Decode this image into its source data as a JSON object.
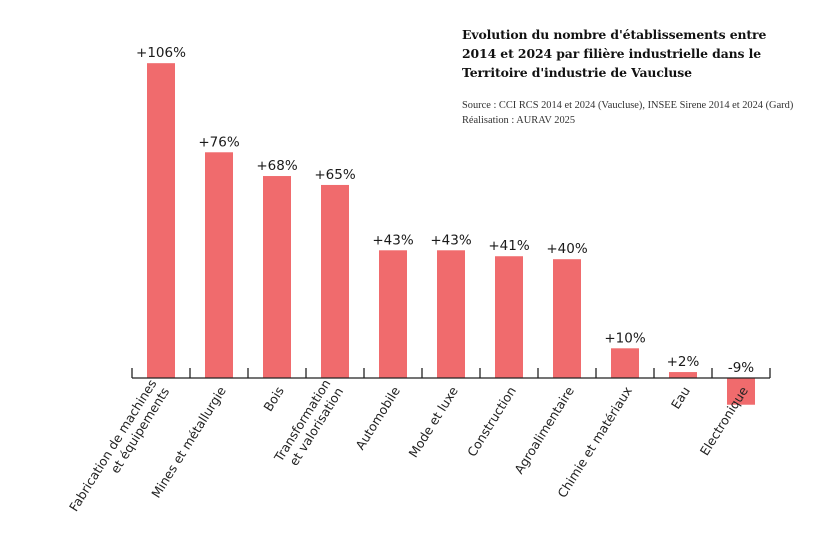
{
  "chart_data": {
    "type": "bar",
    "title_lines": [
      "Evolution du nombre d'établissements entre",
      "2014 et 2024 par  filière industrielle dans le",
      "Territoire d'industrie de Vaucluse"
    ],
    "source_lines": [
      "Source : CCI RCS 2014 et 2024 (Vaucluse), INSEE Sirene 2014 et 2024 (Gard)",
      "Réalisation : AURAV 2025"
    ],
    "xlabel": "",
    "ylabel": "",
    "unit": "%",
    "grid": false,
    "legend": "none",
    "bar_color": "#f06b6d",
    "categories": [
      [
        "Fabrication de machines",
        "et équipements"
      ],
      [
        "Mines et métallurgie"
      ],
      [
        "Bois"
      ],
      [
        "Transformation",
        "et valorisation"
      ],
      [
        "Automobile"
      ],
      [
        "Mode et luxe"
      ],
      [
        "Construction"
      ],
      [
        "Agroalimentaire"
      ],
      [
        "Chimie et matériaux"
      ],
      [
        "Eau"
      ],
      [
        "Electronique"
      ]
    ],
    "values": [
      106,
      76,
      68,
      65,
      43,
      43,
      41,
      40,
      10,
      2,
      -9
    ],
    "data_labels": [
      "+106%",
      "+76%",
      "+68%",
      "+65%",
      "+43%",
      "+43%",
      "+41%",
      "+40%",
      "+10%",
      "+2%",
      "-9%"
    ],
    "ylim": [
      -9,
      106
    ]
  }
}
